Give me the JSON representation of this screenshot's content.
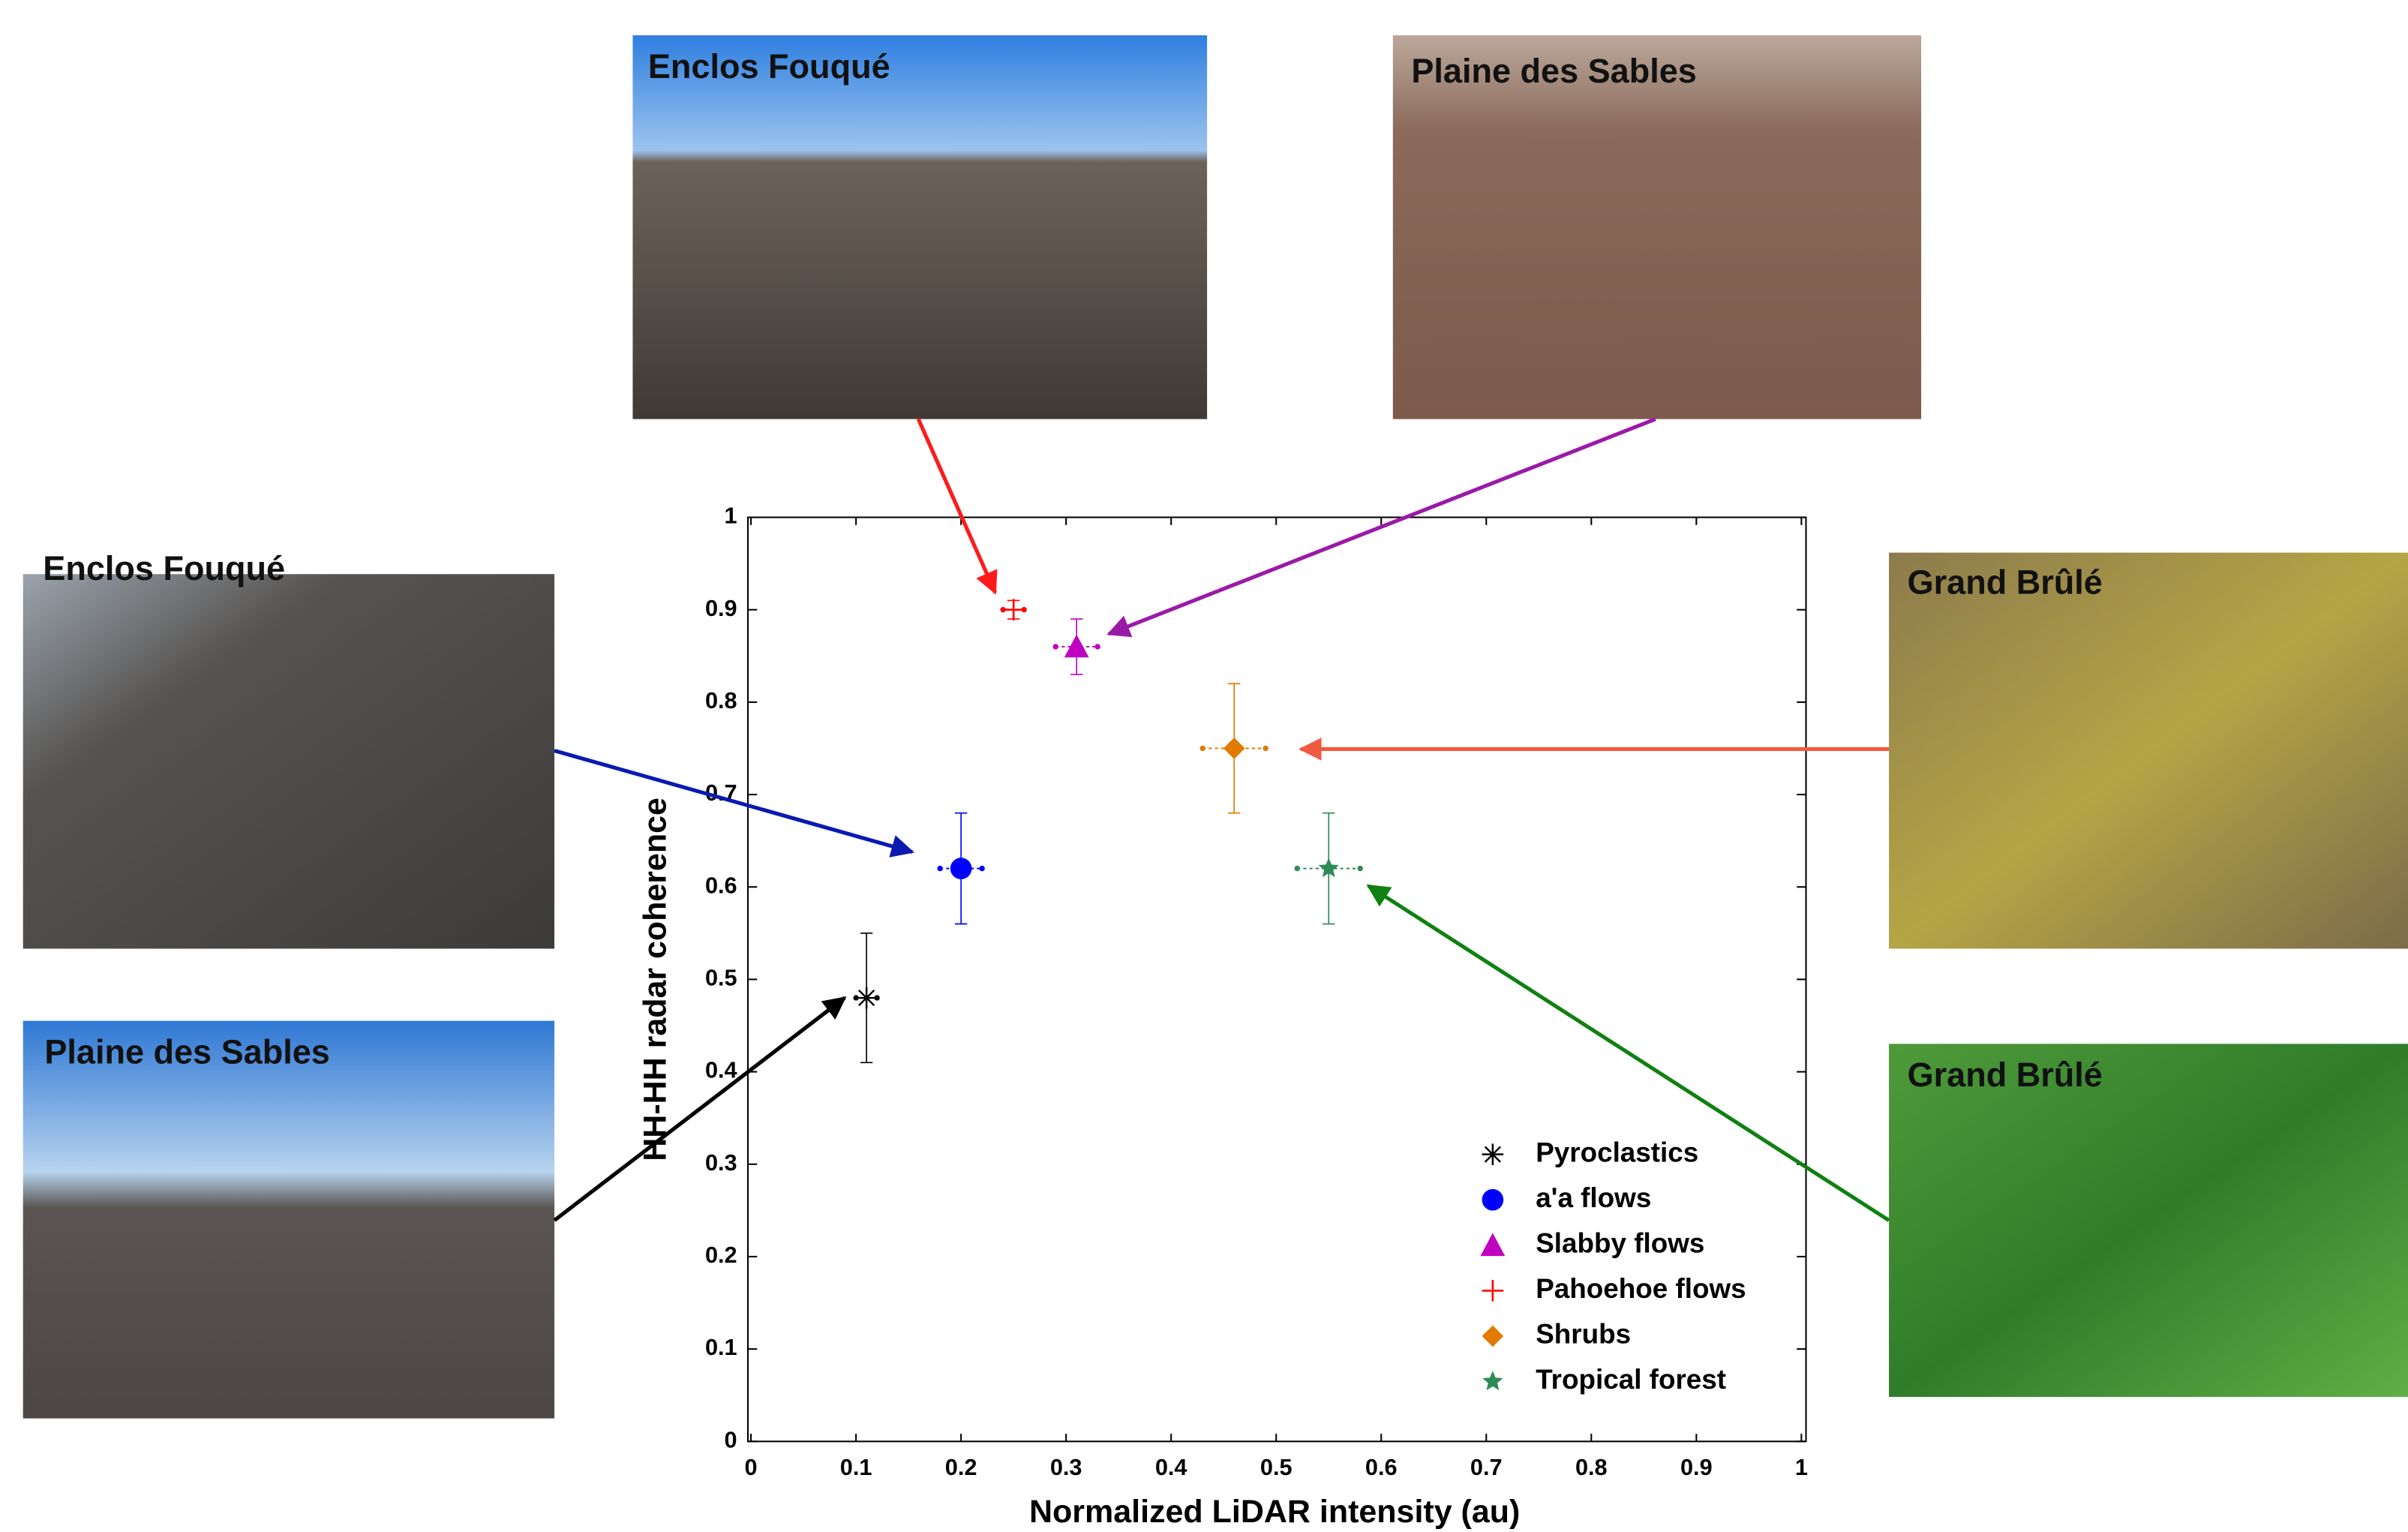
{
  "photos": [
    "Enclos Fouqué",
    "Plaine des Sables",
    "Enclos Fouqué",
    "Plaine des Sables",
    "Grand Brûlé",
    "Grand Brûlé"
  ],
  "chart_data": {
    "type": "scatter",
    "xlabel": "Normalized LiDAR intensity (au)",
    "ylabel": "HH-HH radar coherence",
    "xlim": [
      0,
      1
    ],
    "ylim": [
      0,
      1
    ],
    "xticks": [
      0,
      0.1,
      0.2,
      0.3,
      0.4,
      0.5,
      0.6,
      0.7,
      0.8,
      0.9,
      1
    ],
    "yticks": [
      0,
      0.1,
      0.2,
      0.3,
      0.4,
      0.5,
      0.6,
      0.7,
      0.8,
      0.9,
      1
    ],
    "legend": "lower right",
    "series": [
      {
        "name": "Pyroclastics",
        "color": "#000000",
        "marker": "asterisk",
        "x": [
          0.11
        ],
        "values": [
          0.48
        ],
        "xerr": [
          0.01
        ],
        "yerr": [
          0.07
        ]
      },
      {
        "name": "a'a flows",
        "color": "#0000ff",
        "marker": "circle",
        "x": [
          0.2
        ],
        "values": [
          0.62
        ],
        "xerr": [
          0.02
        ],
        "yerr": [
          0.06
        ]
      },
      {
        "name": "Slabby flows",
        "color": "#c000c0",
        "marker": "triangle",
        "x": [
          0.31
        ],
        "values": [
          0.86
        ],
        "xerr": [
          0.02
        ],
        "yerr": [
          0.03
        ]
      },
      {
        "name": "Pahoehoe flows",
        "color": "#ff0000",
        "marker": "plus",
        "x": [
          0.25
        ],
        "values": [
          0.9
        ],
        "xerr": [
          0.01
        ],
        "yerr": [
          0.01
        ]
      },
      {
        "name": "Shrubs",
        "color": "#e07b00",
        "marker": "diamond",
        "x": [
          0.46
        ],
        "values": [
          0.75
        ],
        "xerr": [
          0.03
        ],
        "yerr": [
          0.07
        ]
      },
      {
        "name": "Tropical forest",
        "color": "#2e8b57",
        "marker": "star",
        "x": [
          0.55
        ],
        "values": [
          0.62
        ],
        "xerr": [
          0.03
        ],
        "yerr": [
          0.06
        ]
      }
    ]
  }
}
